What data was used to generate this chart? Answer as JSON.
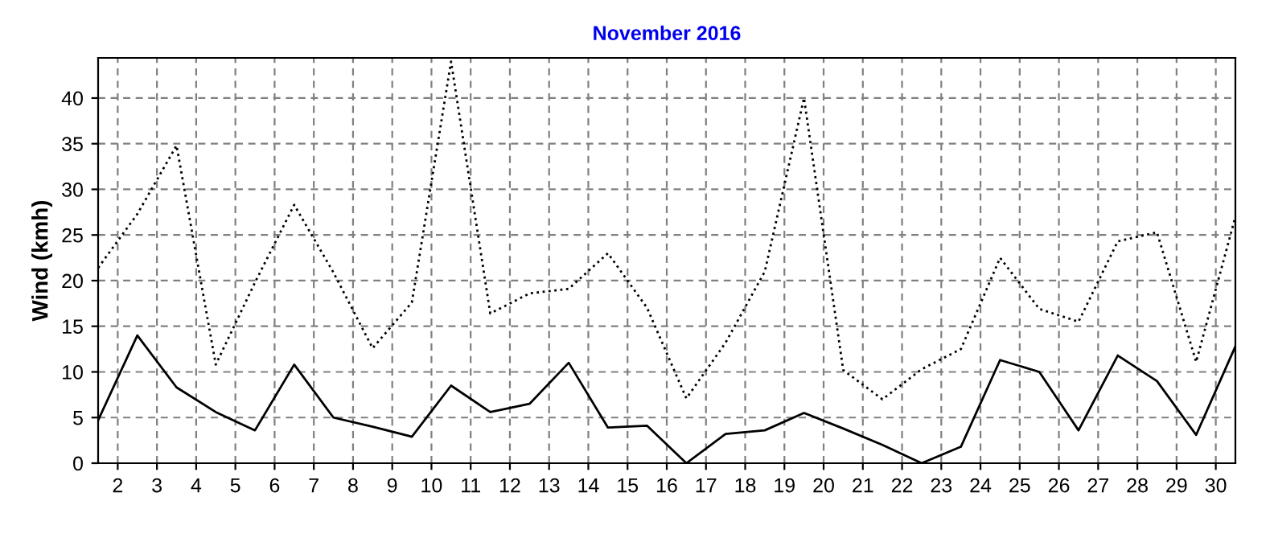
{
  "chart_data": {
    "type": "line",
    "title": "November 2016",
    "ylabel": "Wind (kmh)",
    "x": [
      1.5,
      2.5,
      3.5,
      4.5,
      5.5,
      6.5,
      7.5,
      8.5,
      9.5,
      10.5,
      11.5,
      12.5,
      13.5,
      14.5,
      15.5,
      16.5,
      17.5,
      18.5,
      19.5,
      20.5,
      21.5,
      22.5,
      23.5,
      24.5,
      25.5,
      26.5,
      27.5,
      28.5,
      29.5,
      30.5
    ],
    "series": [
      {
        "color": "#000000",
        "line_style": "dotted",
        "values": [
          21.4,
          27.3,
          34.8,
          10.8,
          19.8,
          28.3,
          20.9,
          12.6,
          17.6,
          44,
          16.4,
          18.6,
          19.1,
          23,
          17,
          7.1,
          13.2,
          21,
          40,
          10.2,
          7,
          10.3,
          12.5,
          22.5,
          16.9,
          15.5,
          24.3,
          25.3,
          11.1,
          27
        ]
      },
      {
        "color": "#000000",
        "line_style": "solid",
        "values": [
          4.7,
          14,
          8.3,
          5.6,
          3.6,
          10.8,
          5,
          4,
          2.9,
          8.5,
          5.6,
          6.5,
          11,
          3.9,
          4.1,
          0,
          3.2,
          3.6,
          5.5,
          3.8,
          2,
          0,
          1.8,
          11.3,
          10,
          3.6,
          11.8,
          9,
          3.1,
          12.8
        ]
      }
    ],
    "xlim": [
      1.5,
      30.5
    ],
    "xticks": [
      2,
      3,
      4,
      5,
      6,
      7,
      8,
      9,
      10,
      11,
      12,
      13,
      14,
      15,
      16,
      17,
      18,
      19,
      20,
      21,
      22,
      23,
      24,
      25,
      26,
      27,
      28,
      29,
      30
    ],
    "ylim": [
      0,
      44.4
    ],
    "yticks": [
      0,
      5,
      10,
      15,
      20,
      25,
      30,
      35,
      40
    ],
    "grid": true,
    "marker": "none"
  }
}
